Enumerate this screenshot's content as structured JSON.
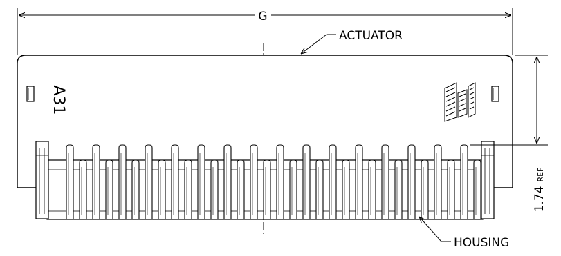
{
  "dimensions": {
    "overall_width": "G",
    "height_value": "1.74",
    "height_suffix": "REF"
  },
  "callouts": {
    "actuator": "ACTUATOR",
    "housing": "HOUSING"
  },
  "markings": {
    "pin_label": "A31"
  },
  "pin_count_visible": 16
}
